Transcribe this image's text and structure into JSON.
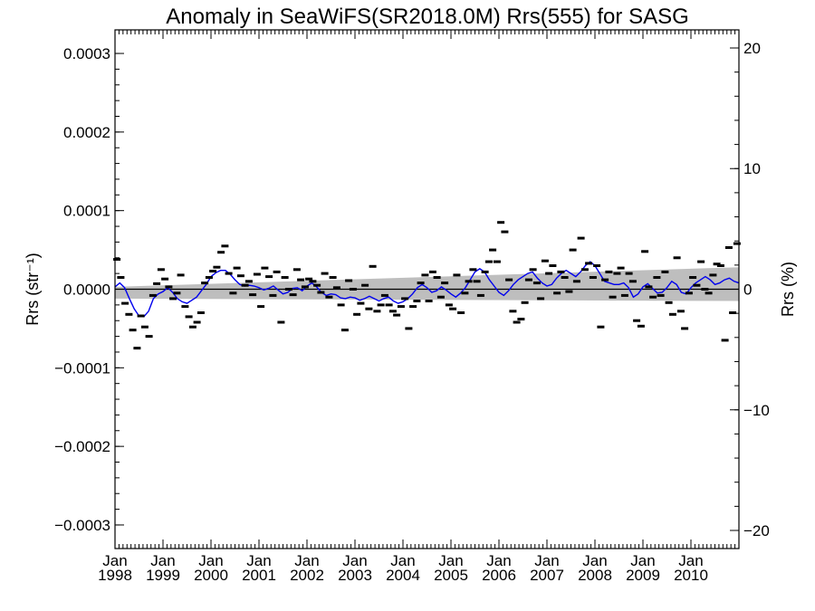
{
  "chart_data": {
    "type": "scatter",
    "title": "Anomaly in SeaWiFS(SR2018.0M) Rrs(555) for SASG",
    "ylabel_left": "Rrs (str⁻¹)",
    "ylabel_right": "Rrs (%)",
    "xlabel": "",
    "xlim": [
      1998.0,
      2011.0
    ],
    "ylim": [
      -0.00033,
      0.00033
    ],
    "y2lim": [
      -21.5,
      21.5
    ],
    "grid": false,
    "x_ticks": [
      {
        "value": 1998,
        "label1": "Jan",
        "label2": "1998"
      },
      {
        "value": 1999,
        "label1": "Jan",
        "label2": "1999"
      },
      {
        "value": 2000,
        "label1": "Jan",
        "label2": "2000"
      },
      {
        "value": 2001,
        "label1": "Jan",
        "label2": "2001"
      },
      {
        "value": 2002,
        "label1": "Jan",
        "label2": "2002"
      },
      {
        "value": 2003,
        "label1": "Jan",
        "label2": "2003"
      },
      {
        "value": 2004,
        "label1": "Jan",
        "label2": "2004"
      },
      {
        "value": 2005,
        "label1": "Jan",
        "label2": "2005"
      },
      {
        "value": 2006,
        "label1": "Jan",
        "label2": "2006"
      },
      {
        "value": 2007,
        "label1": "Jan",
        "label2": "2007"
      },
      {
        "value": 2008,
        "label1": "Jan",
        "label2": "2008"
      },
      {
        "value": 2009,
        "label1": "Jan",
        "label2": "2009"
      },
      {
        "value": 2010,
        "label1": "Jan",
        "label2": "2010"
      }
    ],
    "y_ticks": [
      {
        "value": 0.0003,
        "label": "0.0003"
      },
      {
        "value": 0.0002,
        "label": "0.0002"
      },
      {
        "value": 0.0001,
        "label": "0.0001"
      },
      {
        "value": 0.0,
        "label": "0.0000"
      },
      {
        "value": -0.0001,
        "label": "−0.0001"
      },
      {
        "value": -0.0002,
        "label": "−0.0002"
      },
      {
        "value": -0.0003,
        "label": "−0.0003"
      }
    ],
    "y2_ticks": [
      {
        "value": 20,
        "label": "20"
      },
      {
        "value": 10,
        "label": "10"
      },
      {
        "value": 0,
        "label": "0"
      },
      {
        "value": -10,
        "label": "−10"
      },
      {
        "value": -20,
        "label": "−20"
      }
    ],
    "series": [
      {
        "kind": "monthly_points",
        "color": "#000000",
        "x": [
          1998.04,
          1998.12,
          1998.21,
          1998.29,
          1998.37,
          1998.46,
          1998.54,
          1998.62,
          1998.71,
          1998.79,
          1998.87,
          1998.96,
          1999.04,
          1999.12,
          1999.21,
          1999.29,
          1999.37,
          1999.46,
          1999.54,
          1999.62,
          1999.71,
          1999.79,
          1999.87,
          1999.96,
          2000.04,
          2000.12,
          2000.21,
          2000.29,
          2000.37,
          2000.46,
          2000.54,
          2000.62,
          2000.71,
          2000.79,
          2000.87,
          2000.96,
          2001.04,
          2001.12,
          2001.21,
          2001.29,
          2001.37,
          2001.46,
          2001.54,
          2001.62,
          2001.71,
          2001.79,
          2001.87,
          2001.96,
          2002.04,
          2002.12,
          2002.21,
          2002.29,
          2002.37,
          2002.46,
          2002.54,
          2002.62,
          2002.71,
          2002.79,
          2002.87,
          2002.96,
          2003.04,
          2003.12,
          2003.21,
          2003.29,
          2003.37,
          2003.46,
          2003.54,
          2003.62,
          2003.71,
          2003.79,
          2003.87,
          2003.96,
          2004.04,
          2004.12,
          2004.21,
          2004.29,
          2004.37,
          2004.46,
          2004.54,
          2004.62,
          2004.71,
          2004.79,
          2004.87,
          2004.96,
          2005.04,
          2005.12,
          2005.21,
          2005.29,
          2005.37,
          2005.46,
          2005.54,
          2005.62,
          2005.71,
          2005.79,
          2005.87,
          2005.96,
          2006.04,
          2006.12,
          2006.21,
          2006.29,
          2006.37,
          2006.46,
          2006.54,
          2006.62,
          2006.71,
          2006.79,
          2006.87,
          2006.96,
          2007.04,
          2007.12,
          2007.21,
          2007.29,
          2007.37,
          2007.46,
          2007.54,
          2007.62,
          2007.71,
          2007.79,
          2007.87,
          2007.96,
          2008.04,
          2008.12,
          2008.21,
          2008.29,
          2008.37,
          2008.46,
          2008.54,
          2008.62,
          2008.71,
          2008.79,
          2008.87,
          2008.96,
          2009.04,
          2009.12,
          2009.21,
          2009.29,
          2009.37,
          2009.46,
          2009.54,
          2009.62,
          2009.71,
          2009.79,
          2009.87,
          2009.96,
          2010.04,
          2010.12,
          2010.21,
          2010.29,
          2010.37,
          2010.46,
          2010.54,
          2010.62,
          2010.71,
          2010.79,
          2010.87,
          2010.96
        ],
        "y": [
          3.8e-05,
          1.5e-05,
          -1.8e-05,
          -3.2e-05,
          -5.2e-05,
          -7.5e-05,
          -3.4e-05,
          -4.8e-05,
          -6e-05,
          -8e-06,
          7e-06,
          2.5e-05,
          1.3e-05,
          3e-06,
          -1.2e-05,
          -5e-06,
          1.8e-05,
          -2.2e-05,
          -3.5e-05,
          -4.8e-05,
          -4.2e-05,
          -3e-05,
          8e-06,
          1.5e-05,
          2.3e-05,
          2.8e-05,
          4.7e-05,
          5.5e-05,
          2e-05,
          -5e-06,
          2.7e-05,
          1.7e-05,
          5e-06,
          1e-05,
          -7e-06,
          1.9e-05,
          -2.2e-05,
          2.7e-05,
          1.6e-05,
          -8e-06,
          2.2e-05,
          -4.2e-05,
          1.5e-05,
          0.0,
          -7e-06,
          2.5e-05,
          1.2e-05,
          3e-06,
          1.3e-05,
          1e-05,
          5e-06,
          -4e-06,
          2e-05,
          -1e-05,
          1.5e-05,
          2e-06,
          -2e-05,
          -5.2e-05,
          1.1e-05,
          0.0,
          -3.2e-05,
          -1.8e-05,
          5e-06,
          -2.5e-05,
          2.9e-05,
          -2.8e-05,
          -2e-05,
          -8e-06,
          -2e-05,
          -2.8e-05,
          -3.3e-05,
          -2.2e-05,
          -1.2e-05,
          -5e-05,
          -2.2e-05,
          -1.5e-05,
          8e-06,
          1.8e-05,
          -1.5e-05,
          2.2e-05,
          1.5e-05,
          -1e-05,
          8e-06,
          -2e-05,
          -2.5e-05,
          1.8e-05,
          -3e-05,
          -5e-06,
          1e-05,
          2.5e-05,
          1e-05,
          -8e-06,
          2.2e-05,
          3.5e-05,
          5e-05,
          3.5e-05,
          8.5e-05,
          7.3e-05,
          1.2e-05,
          -2.8e-05,
          -4.2e-05,
          -3.8e-05,
          -1.7e-05,
          1.2e-05,
          2.5e-05,
          8e-06,
          -1.2e-05,
          3.6e-05,
          2e-05,
          3e-05,
          -5e-06,
          2.2e-05,
          1.5e-05,
          -3e-06,
          5e-05,
          1e-05,
          6.5e-05,
          2.5e-05,
          3.3e-05,
          1.5e-05,
          3e-05,
          -4.8e-05,
          1.2e-05,
          2.2e-05,
          -1e-05,
          2e-05,
          2.7e-05,
          -8e-06,
          2e-05,
          1e-05,
          -4e-05,
          -4.7e-05,
          4.8e-05,
          3e-06,
          -1e-05,
          1.5e-05,
          -8e-06,
          2.2e-05,
          -1.7e-05,
          -3.2e-05,
          4e-05,
          -2.8e-05,
          -5e-05,
          -5e-06,
          1.5e-05,
          5e-06,
          3.5e-05,
          0.0,
          -5e-06,
          1.8e-05,
          3.2e-05,
          3e-05,
          -6.5e-05,
          5.3e-05,
          -3e-05,
          5.8e-05
        ]
      },
      {
        "kind": "smoothed_line",
        "color": "#0000ee",
        "x": [
          1998.0,
          1998.1,
          1998.2,
          1998.3,
          1998.4,
          1998.5,
          1998.6,
          1998.7,
          1998.8,
          1998.9,
          1999.0,
          1999.1,
          1999.2,
          1999.3,
          1999.4,
          1999.5,
          1999.6,
          1999.7,
          1999.8,
          1999.9,
          2000.0,
          2000.1,
          2000.2,
          2000.3,
          2000.4,
          2000.5,
          2000.6,
          2000.7,
          2000.8,
          2000.9,
          2001.0,
          2001.1,
          2001.2,
          2001.3,
          2001.4,
          2001.5,
          2001.6,
          2001.7,
          2001.8,
          2001.9,
          2002.0,
          2002.1,
          2002.2,
          2002.3,
          2002.4,
          2002.5,
          2002.6,
          2002.7,
          2002.8,
          2002.9,
          2003.0,
          2003.1,
          2003.2,
          2003.3,
          2003.4,
          2003.5,
          2003.6,
          2003.7,
          2003.8,
          2003.9,
          2004.0,
          2004.1,
          2004.2,
          2004.3,
          2004.4,
          2004.5,
          2004.6,
          2004.7,
          2004.8,
          2004.9,
          2005.0,
          2005.1,
          2005.2,
          2005.3,
          2005.4,
          2005.5,
          2005.6,
          2005.7,
          2005.8,
          2005.9,
          2006.0,
          2006.1,
          2006.2,
          2006.3,
          2006.4,
          2006.5,
          2006.6,
          2006.7,
          2006.8,
          2006.9,
          2007.0,
          2007.1,
          2007.2,
          2007.3,
          2007.4,
          2007.5,
          2007.6,
          2007.7,
          2007.8,
          2007.9,
          2008.0,
          2008.1,
          2008.2,
          2008.3,
          2008.4,
          2008.5,
          2008.6,
          2008.7,
          2008.8,
          2008.9,
          2009.0,
          2009.1,
          2009.2,
          2009.3,
          2009.4,
          2009.5,
          2009.6,
          2009.7,
          2009.8,
          2009.9,
          2010.0,
          2010.1,
          2010.2,
          2010.3,
          2010.4,
          2010.5,
          2010.6,
          2010.7,
          2010.8,
          2010.9,
          2011.0
        ],
        "y": [
          3e-06,
          8e-06,
          2e-06,
          -1.2e-05,
          -2.5e-05,
          -3.4e-05,
          -3.5e-05,
          -2.8e-05,
          -1.2e-05,
          -6e-06,
          -3e-06,
          2e-06,
          -4e-06,
          -1.2e-05,
          -1.6e-05,
          -1.8e-05,
          -1.4e-05,
          -1e-05,
          -2e-06,
          6e-06,
          1.6e-05,
          2.1e-05,
          2.4e-05,
          2.4e-05,
          1.9e-05,
          1.2e-05,
          6e-06,
          4e-06,
          5e-06,
          4e-06,
          2e-06,
          -1e-06,
          1e-06,
          4e-06,
          -1e-06,
          -6e-06,
          -4e-06,
          1e-06,
          2e-06,
          -2e-06,
          4e-06,
          8e-06,
          3e-06,
          -4e-06,
          -8e-06,
          -6e-06,
          -7e-06,
          -1.1e-05,
          -1.2e-05,
          -1e-05,
          -1.1e-05,
          -1.4e-05,
          -1.2e-05,
          -9e-06,
          -1.2e-05,
          -1.5e-05,
          -1.2e-05,
          -1e-05,
          -1.5e-05,
          -1.8e-05,
          -1.6e-05,
          -1.2e-05,
          -6e-06,
          2e-06,
          6e-06,
          2e-06,
          -4e-06,
          -2e-06,
          3e-06,
          -1e-06,
          -6e-06,
          -1e-05,
          -5e-06,
          2e-06,
          1.2e-05,
          2.2e-05,
          2.6e-05,
          2.2e-05,
          1.2e-05,
          4e-06,
          -4e-06,
          -8e-06,
          -2e-06,
          6e-06,
          1.2e-05,
          1.6e-05,
          2e-05,
          2.2e-05,
          1.4e-05,
          8e-06,
          4e-06,
          6e-06,
          1.4e-05,
          2e-05,
          2.4e-05,
          2e-05,
          1.6e-05,
          2.2e-05,
          3e-05,
          3.5e-05,
          3e-05,
          2e-05,
          1e-05,
          8e-06,
          6e-06,
          6e-06,
          8e-06,
          2e-06,
          -1e-05,
          -6e-06,
          3e-06,
          7e-06,
          1e-06,
          -5e-06,
          -4e-06,
          2e-06,
          1e-05,
          6e-06,
          -4e-06,
          -6e-06,
          2e-06,
          8e-06,
          1.2e-05,
          1.6e-05,
          1.2e-05,
          6e-06,
          8e-06,
          1.2e-05,
          1.4e-05,
          1e-05,
          8e-06
        ]
      }
    ],
    "band": {
      "kind": "trend_confidence_band",
      "color": "#bebebe",
      "x": [
        1998.0,
        2011.0
      ],
      "upper": [
        3e-06,
        2.8e-05
      ],
      "lower": [
        -1.2e-05,
        -1.5e-05
      ]
    },
    "zero_line": 0.0
  }
}
